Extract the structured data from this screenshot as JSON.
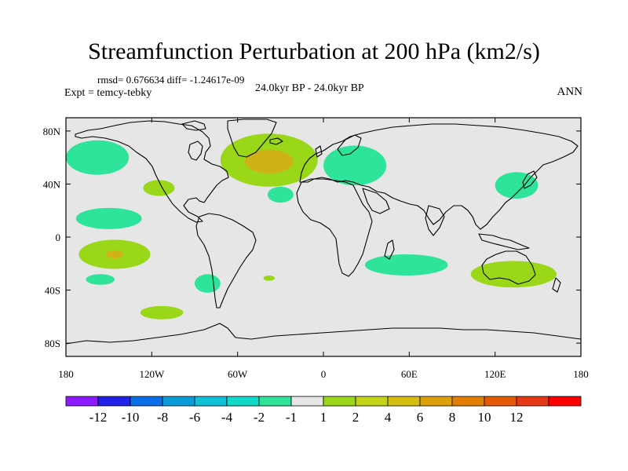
{
  "title": "Streamfunction Perturbation at 200 hPa (km2/s)",
  "stats": "rmsd= 0.676634 diff= -1.24617e-09",
  "expt": "Expt = temcy-tebky",
  "center_label": "24.0kyr BP - 24.0kyr BP",
  "season": "ANN",
  "map": {
    "land_fill": "#e6e6e6",
    "y_ticks": [
      {
        "lat": 80,
        "label": "80N"
      },
      {
        "lat": 40,
        "label": "40N"
      },
      {
        "lat": 0,
        "label": "0"
      },
      {
        "lat": -40,
        "label": "40S"
      },
      {
        "lat": -80,
        "label": "80S"
      }
    ],
    "x_ticks": [
      {
        "lon": -180,
        "label": "180"
      },
      {
        "lon": -120,
        "label": "120W"
      },
      {
        "lon": -60,
        "label": "60W"
      },
      {
        "lon": 0,
        "label": "0"
      },
      {
        "lon": 60,
        "label": "60E"
      },
      {
        "lon": 120,
        "label": "120E"
      },
      {
        "lon": 180,
        "label": "180"
      }
    ],
    "anomalies": [
      {
        "name": "north-pacific-negative",
        "lon": -158,
        "lat": 60,
        "rx": 22,
        "ry": 13,
        "color": "#2ee39a"
      },
      {
        "name": "northeast-pacific-positive",
        "lon": -115,
        "lat": 37,
        "rx": 11,
        "ry": 6,
        "color": "#9ad719"
      },
      {
        "name": "north-atlantic-positive",
        "lon": -38,
        "lat": 58,
        "rx": 34,
        "ry": 20,
        "color": "#9ad719"
      },
      {
        "name": "north-atlantic-core",
        "lon": -38,
        "lat": 57,
        "rx": 17,
        "ry": 9,
        "color": "#cfb316"
      },
      {
        "name": "central-atlantic-negative",
        "lon": -30,
        "lat": 32,
        "rx": 9,
        "ry": 6,
        "color": "#2ee39a"
      },
      {
        "name": "europe-negative",
        "lon": 22,
        "lat": 54,
        "rx": 22,
        "ry": 15,
        "color": "#2ee39a"
      },
      {
        "name": "japan-negative",
        "lon": 135,
        "lat": 39,
        "rx": 15,
        "ry": 10,
        "color": "#2ee39a"
      },
      {
        "name": "tropical-pacific-negative",
        "lon": -150,
        "lat": 14,
        "rx": 23,
        "ry": 8,
        "color": "#2ee39a"
      },
      {
        "name": "south-pacific-positive",
        "lon": -146,
        "lat": -13,
        "rx": 25,
        "ry": 11,
        "color": "#9ad719"
      },
      {
        "name": "south-pacific-core",
        "lon": -146,
        "lat": -13,
        "rx": 6,
        "ry": 3,
        "color": "#cfb316"
      },
      {
        "name": "southeast-pacific-negative",
        "lon": -156,
        "lat": -32,
        "rx": 10,
        "ry": 4,
        "color": "#2ee39a"
      },
      {
        "name": "southeast-pacific-negative-2",
        "lon": -81,
        "lat": -35,
        "rx": 9,
        "ry": 7,
        "color": "#2ee39a"
      },
      {
        "name": "south-atlantic-positive",
        "lon": -38,
        "lat": -31,
        "rx": 4,
        "ry": 2,
        "color": "#9ad719"
      },
      {
        "name": "southern-ocean-positive",
        "lon": -113,
        "lat": -57,
        "rx": 15,
        "ry": 5,
        "color": "#9ad719"
      },
      {
        "name": "indian-ocean-negative",
        "lon": 58,
        "lat": -21,
        "rx": 29,
        "ry": 8,
        "color": "#2ee39a"
      },
      {
        "name": "australia-positive",
        "lon": 133,
        "lat": -28,
        "rx": 30,
        "ry": 10,
        "color": "#9ad719"
      }
    ]
  },
  "colorbar": {
    "colors": [
      "#8c1aff",
      "#2222e6",
      "#0a6ee6",
      "#0a9cd8",
      "#11c1d8",
      "#11d8c8",
      "#2ee39a",
      "#e6e6e6",
      "#9ad719",
      "#c3d21a",
      "#d6bd11",
      "#dca00a",
      "#e07e06",
      "#e55a06",
      "#e63814",
      "#ff0000"
    ],
    "labels": [
      "-12",
      "-10",
      "-8",
      "-6",
      "-4",
      "-2",
      "-1",
      "1",
      "2",
      "4",
      "6",
      "8",
      "10",
      "12"
    ]
  }
}
